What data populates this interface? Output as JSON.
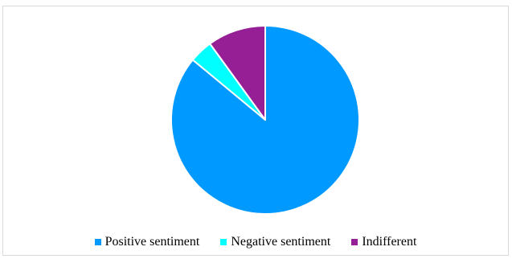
{
  "chart_data": {
    "type": "pie",
    "title": "",
    "categories": [
      "Positive sentiment",
      "Negative sentiment",
      "Indifferent"
    ],
    "values": [
      86,
      4,
      10
    ],
    "colors": [
      "#0099ff",
      "#00ffff",
      "#961f96"
    ],
    "legend_position": "bottom",
    "start_angle_deg": 0,
    "direction": "clockwise"
  }
}
